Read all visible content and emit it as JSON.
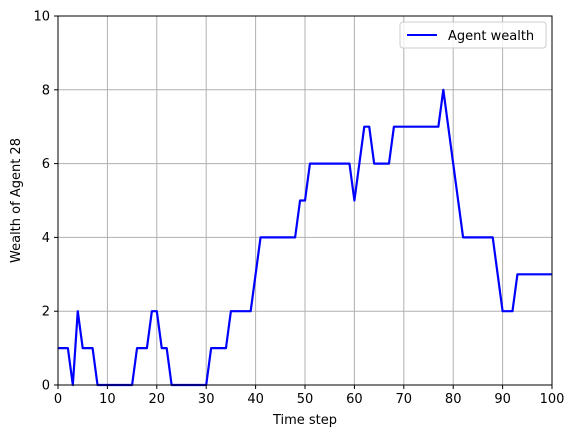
{
  "chart_data": {
    "type": "line",
    "title": "",
    "xlabel": "Time step",
    "ylabel": "Wealth of Agent 28",
    "xlim": [
      0,
      100
    ],
    "ylim": [
      0,
      10
    ],
    "xticks": [
      0,
      10,
      20,
      30,
      40,
      50,
      60,
      70,
      80,
      90,
      100
    ],
    "yticks": [
      0,
      2,
      4,
      6,
      8,
      10
    ],
    "grid": true,
    "legend_position": "top-right",
    "series": [
      {
        "name": "Agent wealth",
        "color": "#0000ff",
        "x": [
          0,
          1,
          2,
          3,
          4,
          5,
          6,
          7,
          8,
          9,
          10,
          11,
          12,
          13,
          14,
          15,
          16,
          17,
          18,
          19,
          20,
          21,
          22,
          23,
          24,
          25,
          26,
          27,
          28,
          29,
          30,
          31,
          32,
          33,
          34,
          35,
          36,
          37,
          38,
          39,
          40,
          41,
          42,
          43,
          44,
          45,
          46,
          47,
          48,
          49,
          50,
          51,
          52,
          53,
          54,
          55,
          56,
          57,
          58,
          59,
          60,
          61,
          62,
          63,
          64,
          65,
          66,
          67,
          68,
          69,
          70,
          71,
          72,
          73,
          74,
          75,
          76,
          77,
          78,
          79,
          80,
          81,
          82,
          83,
          84,
          85,
          86,
          87,
          88,
          89,
          90,
          91,
          92,
          93,
          94,
          95,
          96,
          97,
          98,
          99,
          100
        ],
        "values": [
          1,
          1,
          1,
          0,
          2,
          1,
          1,
          1,
          0,
          0,
          0,
          0,
          0,
          0,
          0,
          0,
          1,
          1,
          1,
          2,
          2,
          1,
          1,
          0,
          0,
          0,
          0,
          0,
          0,
          0,
          0,
          1,
          1,
          1,
          1,
          2,
          2,
          2,
          2,
          2,
          3,
          4,
          4,
          4,
          4,
          4,
          4,
          4,
          4,
          5,
          5,
          6,
          6,
          6,
          6,
          6,
          6,
          6,
          6,
          6,
          5,
          6,
          7,
          7,
          6,
          6,
          6,
          6,
          7,
          7,
          7,
          7,
          7,
          7,
          7,
          7,
          7,
          7,
          8,
          7,
          6,
          5,
          4,
          4,
          4,
          4,
          4,
          4,
          4,
          3,
          2,
          2,
          2,
          3,
          3,
          3,
          3,
          3,
          3,
          3,
          3
        ]
      }
    ]
  }
}
